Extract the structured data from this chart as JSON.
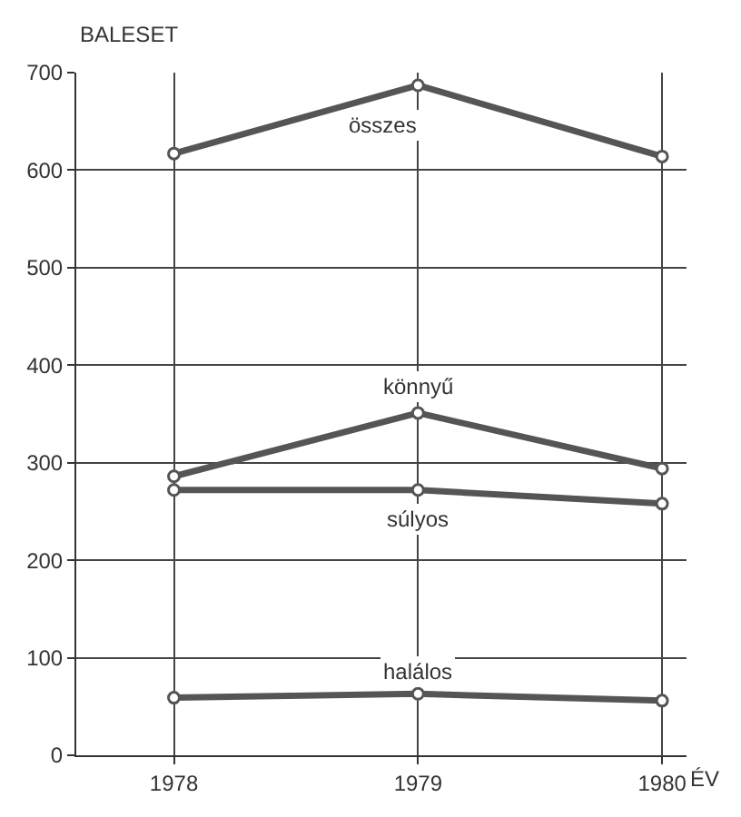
{
  "chart_data": {
    "type": "line",
    "ylabel": "BALESET",
    "xlabel": "ÉV",
    "x": [
      1978,
      1979,
      1980
    ],
    "series": [
      {
        "name": "összes",
        "color": "#555555",
        "values": [
          617,
          687,
          614
        ]
      },
      {
        "name": "könnyű",
        "color": "#555555",
        "values": [
          286,
          351,
          294
        ]
      },
      {
        "name": "súlyos",
        "color": "#555555",
        "values": [
          272,
          272,
          258
        ]
      },
      {
        "name": "halálos",
        "color": "#555555",
        "values": [
          59,
          63,
          56
        ]
      }
    ],
    "xlim": [
      1977.6,
      1980.1
    ],
    "xticks": [
      1978,
      1979,
      1980
    ],
    "ylim": [
      0,
      700
    ],
    "yticks": [
      0,
      100,
      200,
      300,
      400,
      500,
      600,
      700
    ],
    "grid": true,
    "legend": false,
    "marker": "circle",
    "line_style": "solid"
  }
}
